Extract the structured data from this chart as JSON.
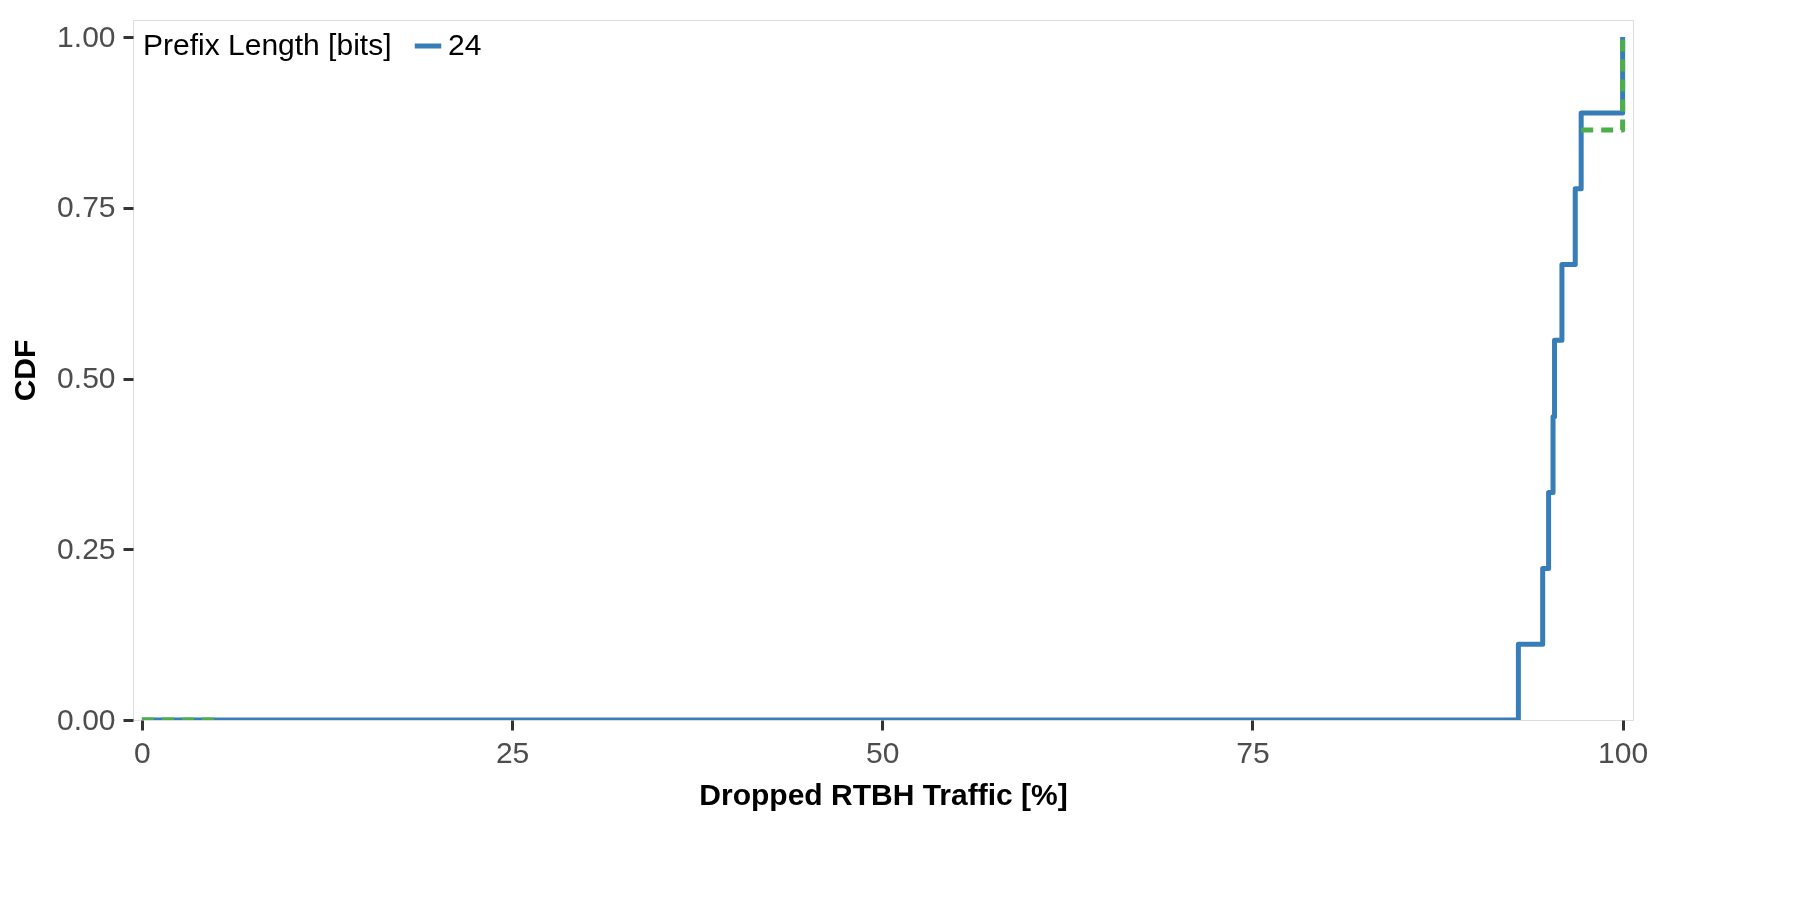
{
  "chart_data": {
    "type": "step",
    "xlabel": "Dropped RTBH Traffic [%]",
    "ylabel": "CDF",
    "legend_title": "Prefix Length [bits]",
    "series": [
      {
        "name": "24",
        "color": "#377eb8",
        "x": [
          0,
          92.96,
          94.6,
          95.0,
          95.3,
          95.4,
          95.9,
          96.8,
          97.2,
          100
        ],
        "values": [
          0,
          0.111,
          0.222,
          0.333,
          0.444,
          0.556,
          0.667,
          0.778,
          0.889,
          1.0
        ]
      },
      {
        "color": "#4daf4a",
        "line_style": "dashed",
        "x": [
          0,
          5,
          6,
          97.2,
          100
        ],
        "values": [
          0,
          0,
          null,
          0.864,
          1.0
        ]
      }
    ],
    "xlim": [
      -0.6,
      100.7
    ],
    "ylim": [
      0,
      1.025
    ],
    "xticks": [
      0,
      25,
      50,
      75,
      100
    ],
    "yticks": [
      {
        "value": 0,
        "label": "0.00"
      },
      {
        "value": 0.25,
        "label": "0.25"
      },
      {
        "value": 0.5,
        "label": "0.50"
      },
      {
        "value": 0.75,
        "label": "0.75"
      },
      {
        "value": 1.0,
        "label": "1.00"
      }
    ],
    "grid": false,
    "legend": "top left",
    "line_style": "solid"
  }
}
